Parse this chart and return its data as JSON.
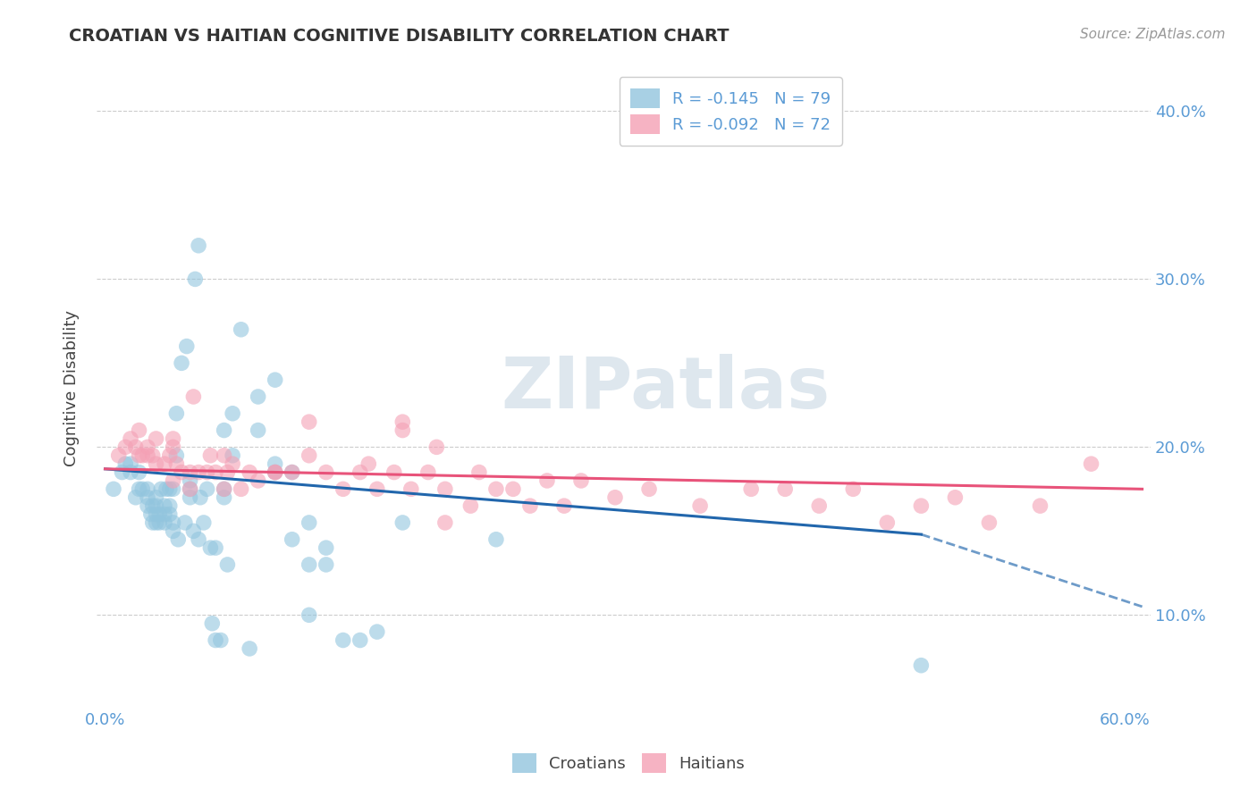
{
  "title": "CROATIAN VS HAITIAN COGNITIVE DISABILITY CORRELATION CHART",
  "source": "Source: ZipAtlas.com",
  "ylabel": "Cognitive Disability",
  "xlabel_croatians": "Croatians",
  "xlabel_haitians": "Haitians",
  "xlim": [
    -0.005,
    0.615
  ],
  "ylim": [
    0.045,
    0.425
  ],
  "yticks": [
    0.1,
    0.2,
    0.3,
    0.4
  ],
  "ytick_labels": [
    "10.0%",
    "20.0%",
    "30.0%",
    "40.0%"
  ],
  "xticks": [
    0.0,
    0.1,
    0.2,
    0.3,
    0.4,
    0.5,
    0.6
  ],
  "xtick_labels": [
    "0.0%",
    "",
    "",
    "",
    "",
    "",
    "60.0%"
  ],
  "legend_r_croatian_label": "R = ",
  "legend_r_croatian_val": "-0.145",
  "legend_n_croatian": "N = 79",
  "legend_r_haitian_label": "R = ",
  "legend_r_haitian_val": "-0.092",
  "legend_n_haitian": "N = 72",
  "color_croatian": "#92c5de",
  "color_haitian": "#f4a0b5",
  "trendline_color_croatian": "#2166ac",
  "trendline_color_haitian": "#e8537a",
  "watermark": "ZIPatlas",
  "background_color": "#ffffff",
  "c_trend_x0": 0.0,
  "c_trend_y0": 0.187,
  "c_trend_x1": 0.48,
  "c_trend_y1": 0.148,
  "c_trend_dash_x0": 0.48,
  "c_trend_dash_y0": 0.148,
  "c_trend_dash_x1": 0.61,
  "c_trend_dash_y1": 0.105,
  "h_trend_x0": 0.0,
  "h_trend_y0": 0.187,
  "h_trend_x1": 0.61,
  "h_trend_y1": 0.175,
  "croatian_x": [
    0.005,
    0.01,
    0.012,
    0.015,
    0.015,
    0.018,
    0.02,
    0.02,
    0.022,
    0.025,
    0.025,
    0.025,
    0.027,
    0.028,
    0.028,
    0.03,
    0.03,
    0.03,
    0.03,
    0.032,
    0.032,
    0.033,
    0.035,
    0.035,
    0.035,
    0.036,
    0.038,
    0.038,
    0.038,
    0.04,
    0.04,
    0.04,
    0.042,
    0.042,
    0.043,
    0.045,
    0.047,
    0.048,
    0.05,
    0.05,
    0.05,
    0.052,
    0.053,
    0.055,
    0.055,
    0.056,
    0.058,
    0.06,
    0.062,
    0.063,
    0.065,
    0.065,
    0.068,
    0.07,
    0.07,
    0.07,
    0.072,
    0.075,
    0.075,
    0.08,
    0.085,
    0.09,
    0.09,
    0.1,
    0.1,
    0.1,
    0.11,
    0.11,
    0.12,
    0.12,
    0.12,
    0.13,
    0.13,
    0.14,
    0.15,
    0.16,
    0.175,
    0.23,
    0.48
  ],
  "croatian_y": [
    0.175,
    0.185,
    0.19,
    0.185,
    0.19,
    0.17,
    0.175,
    0.185,
    0.175,
    0.165,
    0.17,
    0.175,
    0.16,
    0.155,
    0.165,
    0.155,
    0.16,
    0.165,
    0.17,
    0.155,
    0.16,
    0.175,
    0.155,
    0.16,
    0.165,
    0.175,
    0.16,
    0.165,
    0.175,
    0.15,
    0.155,
    0.175,
    0.195,
    0.22,
    0.145,
    0.25,
    0.155,
    0.26,
    0.17,
    0.175,
    0.18,
    0.15,
    0.3,
    0.145,
    0.32,
    0.17,
    0.155,
    0.175,
    0.14,
    0.095,
    0.085,
    0.14,
    0.085,
    0.17,
    0.175,
    0.21,
    0.13,
    0.195,
    0.22,
    0.27,
    0.08,
    0.21,
    0.23,
    0.185,
    0.19,
    0.24,
    0.145,
    0.185,
    0.1,
    0.13,
    0.155,
    0.13,
    0.14,
    0.085,
    0.085,
    0.09,
    0.155,
    0.145,
    0.07
  ],
  "haitian_x": [
    0.008,
    0.012,
    0.015,
    0.018,
    0.02,
    0.02,
    0.022,
    0.025,
    0.025,
    0.028,
    0.03,
    0.03,
    0.035,
    0.038,
    0.04,
    0.04,
    0.04,
    0.042,
    0.045,
    0.05,
    0.05,
    0.052,
    0.055,
    0.06,
    0.062,
    0.065,
    0.07,
    0.07,
    0.072,
    0.075,
    0.08,
    0.085,
    0.09,
    0.1,
    0.1,
    0.11,
    0.12,
    0.12,
    0.13,
    0.14,
    0.15,
    0.155,
    0.16,
    0.17,
    0.175,
    0.18,
    0.19,
    0.2,
    0.2,
    0.22,
    0.24,
    0.25,
    0.26,
    0.27,
    0.28,
    0.3,
    0.32,
    0.35,
    0.38,
    0.4,
    0.42,
    0.44,
    0.46,
    0.48,
    0.5,
    0.52,
    0.55,
    0.58,
    0.175,
    0.195,
    0.215,
    0.23
  ],
  "haitian_y": [
    0.195,
    0.2,
    0.205,
    0.2,
    0.21,
    0.195,
    0.195,
    0.2,
    0.195,
    0.195,
    0.205,
    0.19,
    0.19,
    0.195,
    0.205,
    0.18,
    0.2,
    0.19,
    0.185,
    0.185,
    0.175,
    0.23,
    0.185,
    0.185,
    0.195,
    0.185,
    0.195,
    0.175,
    0.185,
    0.19,
    0.175,
    0.185,
    0.18,
    0.185,
    0.185,
    0.185,
    0.215,
    0.195,
    0.185,
    0.175,
    0.185,
    0.19,
    0.175,
    0.185,
    0.215,
    0.175,
    0.185,
    0.175,
    0.155,
    0.185,
    0.175,
    0.165,
    0.18,
    0.165,
    0.18,
    0.17,
    0.175,
    0.165,
    0.175,
    0.175,
    0.165,
    0.175,
    0.155,
    0.165,
    0.17,
    0.155,
    0.165,
    0.19,
    0.21,
    0.2,
    0.165,
    0.175
  ]
}
